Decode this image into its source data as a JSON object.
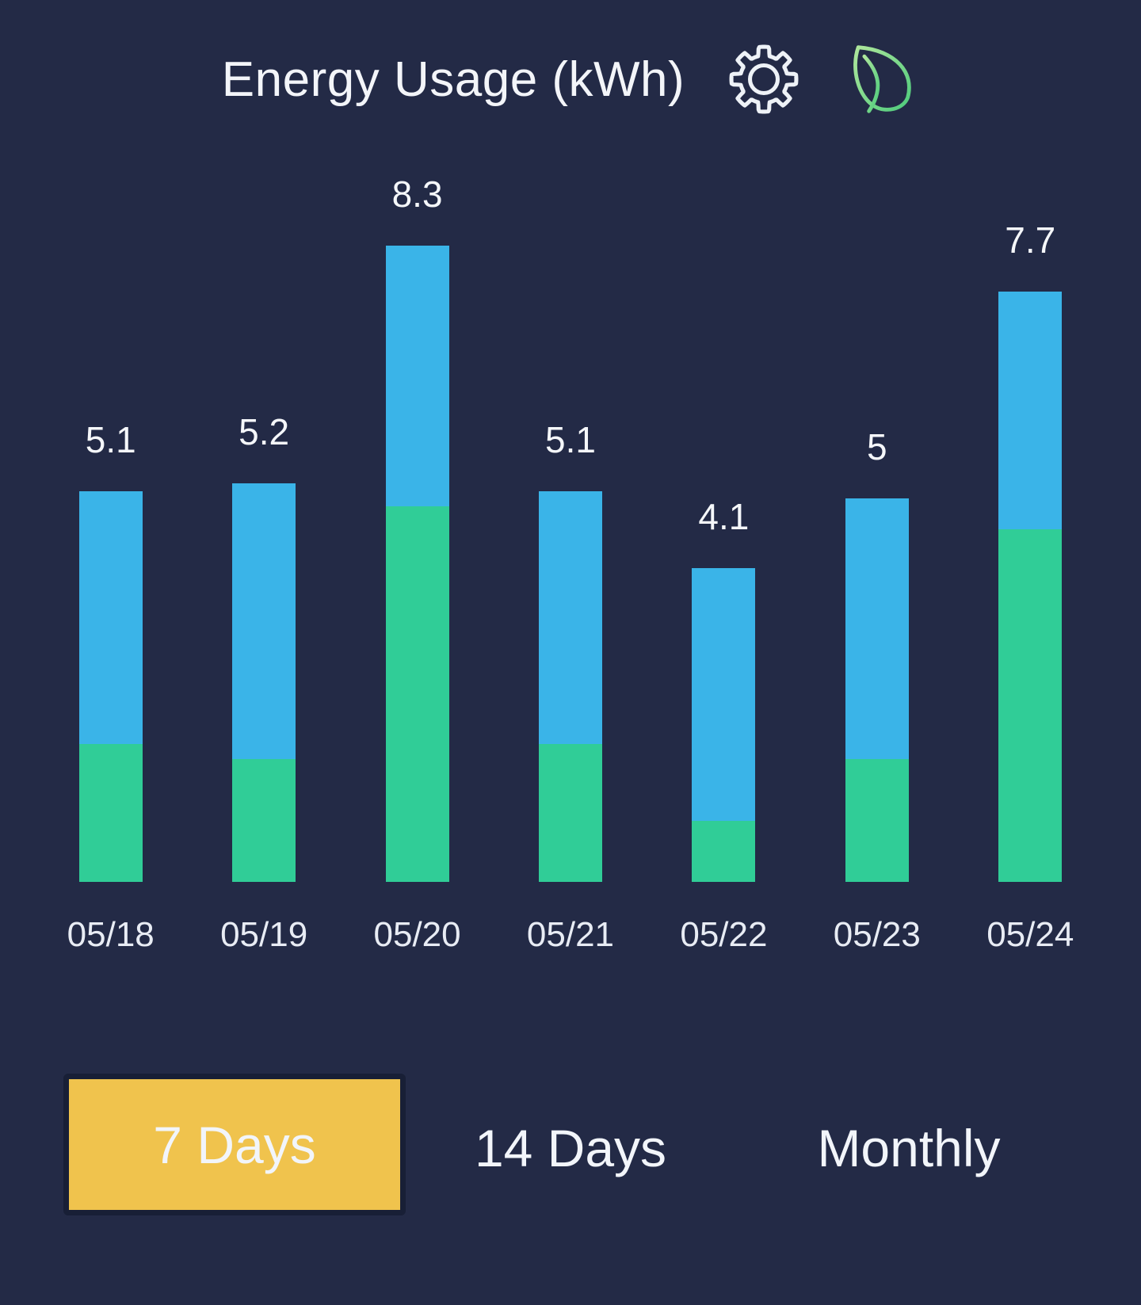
{
  "header": {
    "title": "Energy Usage (kWh)",
    "icons": [
      {
        "name": "settings-gear-icon"
      },
      {
        "name": "eco-leaf-icon"
      }
    ]
  },
  "chart_data": {
    "type": "bar",
    "stacked": true,
    "title": "Energy Usage (kWh)",
    "categories": [
      "05/18",
      "05/19",
      "05/20",
      "05/21",
      "05/22",
      "05/23",
      "05/24"
    ],
    "totals": [
      5.1,
      5.2,
      8.3,
      5.1,
      4.1,
      5,
      7.7
    ],
    "value_labels": [
      "5.1",
      "5.2",
      "8.3",
      "5.1",
      "4.1",
      "5",
      "7.7"
    ],
    "series": [
      {
        "name": "green-lower-segment",
        "color": "#30cd97",
        "values": [
          1.8,
          1.6,
          4.9,
          1.8,
          0.8,
          1.6,
          4.6
        ]
      },
      {
        "name": "blue-upper-segment",
        "color": "#3ab4e8",
        "values": [
          3.3,
          3.6,
          3.4,
          3.3,
          3.3,
          3.4,
          3.1
        ]
      }
    ],
    "xlabel": "",
    "ylabel": "",
    "ylim": [
      0,
      8.9
    ],
    "grid": false,
    "legend": "none"
  },
  "controls": {
    "options": [
      {
        "label": "7 Days",
        "active": true
      },
      {
        "label": "14 Days",
        "active": false
      },
      {
        "label": "Monthly",
        "active": false
      }
    ]
  },
  "colors": {
    "background": "#232a46",
    "bar_blue": "#3ab4e8",
    "bar_green": "#30cd97",
    "accent_yellow": "#f0c34d",
    "title_text": "#f3f5f9",
    "label_text": "#e8ecf4",
    "gear_stroke": "#eef2f7",
    "leaf_stroke_light": "#aee69c",
    "leaf_stroke_dark": "#4ecb7c"
  }
}
